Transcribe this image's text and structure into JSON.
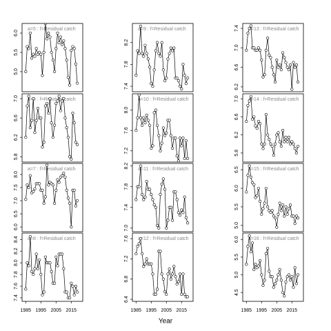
{
  "xlabel": "Year",
  "chart_data": [
    {
      "type": "line",
      "title": "a=5 : f=Residual catch",
      "color": "#000000",
      "x": [
        1985,
        1986,
        1987,
        1988,
        1989,
        1990,
        1991,
        1992,
        1993,
        1994,
        1995,
        1996,
        1997,
        1998,
        1999,
        2000,
        2001,
        2002,
        2003,
        2004,
        2005,
        2006,
        2007,
        2008,
        2009,
        2010,
        2011,
        2012,
        2013,
        2014,
        2015,
        2016,
        2017,
        2018,
        2019
      ],
      "values": [
        5.0,
        5.65,
        5.6,
        6.0,
        5.35,
        5.45,
        5.4,
        5.6,
        5.45,
        5.5,
        5.45,
        4.9,
        5.5,
        6.25,
        5.85,
        6.0,
        5.9,
        5.5,
        5.3,
        5.0,
        5.6,
        6.0,
        5.75,
        5.9,
        5.7,
        5.8,
        5.6,
        5.3,
        4.85,
        4.65,
        5.55,
        5.65,
        5.6,
        5.2,
        4.7
      ],
      "xlim": [
        1982.6,
        2022.6
      ],
      "ylim": [
        4.48,
        6.25
      ],
      "yticks": [
        {
          "value": 5,
          "label": "5.0"
        },
        5.5,
        {
          "value": 6,
          "label": "6.0"
        }
      ]
    },
    {
      "type": "line",
      "title": "a=6 : f=Residual catch",
      "color": "#000000",
      "x": [
        1985,
        1986,
        1987,
        1988,
        1989,
        1990,
        1991,
        1992,
        1993,
        1994,
        1995,
        1996,
        1997,
        1998,
        1999,
        2000,
        2001,
        2002,
        2003,
        2004,
        2005,
        2006,
        2007,
        2008,
        2009,
        2010,
        2011,
        2012,
        2013,
        2014,
        2015,
        2016,
        2017,
        2018,
        2019
      ],
      "values": [
        6.2,
        6.85,
        7.05,
        6.4,
        6.55,
        7.0,
        6.3,
        6.55,
        6.8,
        6.6,
        6.6,
        6.0,
        6.1,
        6.85,
        6.9,
        6.7,
        7.0,
        6.5,
        6.2,
        6.45,
        6.9,
        6.95,
        7.05,
        6.75,
        6.95,
        7.0,
        6.6,
        6.4,
        6.2,
        5.8,
        5.75,
        6.7,
        6.5,
        6.1,
        6.05
      ],
      "xlim": [
        1982.6,
        2022.6
      ],
      "ylim": [
        5.69,
        7.1
      ],
      "yticks": [
        5.8,
        6.2,
        6.6,
        {
          "value": 7,
          "label": "7.0"
        }
      ]
    },
    {
      "type": "line",
      "title": "a=7 : f=Residual catch",
      "color": "#000000",
      "x": [
        1985,
        1986,
        1987,
        1988,
        1989,
        1990,
        1991,
        1992,
        1993,
        1994,
        1995,
        1996,
        1997,
        1998,
        1999,
        2000,
        2001,
        2002,
        2003,
        2004,
        2005,
        2006,
        2007,
        2008,
        2009,
        2010,
        2011,
        2012,
        2013,
        2014,
        2015,
        2016,
        2017,
        2018,
        2019
      ],
      "values": [
        7.05,
        7.6,
        7.5,
        7.95,
        7.3,
        7.35,
        7.45,
        7.65,
        7.65,
        7.65,
        7.4,
        7.4,
        6.9,
        7.15,
        8.35,
        7.6,
        7.7,
        7.65,
        7.6,
        6.9,
        7.4,
        7.8,
        7.7,
        7.9,
        7.95,
        8.05,
        7.9,
        7.4,
        7.1,
        6.9,
        6.0,
        7.4,
        7.4,
        6.8,
        7.0
      ],
      "xlim": [
        1982.6,
        2022.6
      ],
      "ylim": [
        5.82,
        8.42
      ],
      "yticks": [
        {
          "value": 6,
          "label": "6.0"
        },
        6.5,
        {
          "value": 7,
          "label": "7.0"
        },
        7.5,
        {
          "value": 8,
          "label": "8.0"
        }
      ]
    },
    {
      "type": "line",
      "title": "a=8 : f=Residual catch",
      "color": "#000000",
      "x": [
        1985,
        1986,
        1987,
        1988,
        1989,
        1990,
        1991,
        1992,
        1993,
        1994,
        1995,
        1996,
        1997,
        1998,
        1999,
        2000,
        2001,
        2002,
        2003,
        2004,
        2005,
        2006,
        2007,
        2008,
        2009,
        2010,
        2011,
        2012,
        2013,
        2014,
        2015,
        2016,
        2017,
        2018,
        2019
      ],
      "values": [
        7.55,
        8.0,
        7.95,
        8.45,
        7.85,
        7.8,
        7.9,
        8.15,
        7.9,
        8.05,
        7.8,
        7.45,
        7.5,
        8.1,
        8.0,
        8.0,
        8.0,
        7.85,
        7.65,
        7.65,
        8.1,
        7.95,
        8.15,
        8.15,
        8.15,
        7.9,
        7.5,
        7.5,
        7.4,
        7.4,
        7.65,
        7.6,
        7.45,
        7.6,
        7.5
      ],
      "xlim": [
        1982.6,
        2022.6
      ],
      "ylim": [
        7.34,
        8.51
      ],
      "yticks": [
        7.4,
        7.6,
        7.8,
        {
          "value": 8,
          "label": "8.0"
        },
        8.2,
        8.4
      ],
      "xticks": [
        1985,
        1995,
        2005,
        2015
      ]
    },
    {
      "type": "line",
      "title": "a=9 : f=Residual catch",
      "color": "#000000",
      "x": [
        1985,
        1986,
        1987,
        1988,
        1989,
        1990,
        1991,
        1992,
        1993,
        1994,
        1995,
        1996,
        1997,
        1998,
        1999,
        2000,
        2001,
        2002,
        2003,
        2004,
        2005,
        2006,
        2007,
        2008,
        2009,
        2010,
        2011,
        2012,
        2013,
        2014,
        2015,
        2016,
        2017,
        2018,
        2019
      ],
      "values": [
        7.6,
        8.05,
        8.0,
        8.5,
        8.0,
        7.95,
        8.15,
        8.0,
        7.9,
        7.75,
        7.45,
        7.4,
        7.7,
        8.05,
        8.2,
        8.0,
        7.95,
        8.2,
        7.7,
        7.5,
        7.55,
        7.9,
        8.0,
        8.1,
        8.05,
        8.1,
        7.55,
        7.55,
        7.5,
        7.4,
        7.35,
        7.8,
        7.6,
        7.45,
        7.55
      ],
      "xlim": [
        1982.6,
        2022.6
      ],
      "ylim": [
        7.3,
        8.55
      ],
      "yticks": [
        7.4,
        7.8,
        8.2
      ]
    },
    {
      "type": "line",
      "title": "a=10 : f=Residual catch",
      "color": "#000000",
      "x": [
        1985,
        1986,
        1987,
        1988,
        1989,
        1990,
        1991,
        1992,
        1993,
        1994,
        1995,
        1996,
        1997,
        1998,
        1999,
        2000,
        2001,
        2002,
        2003,
        2004,
        2005,
        2006,
        2007,
        2008,
        2009,
        2010,
        2011,
        2012,
        2013,
        2014,
        2015,
        2016,
        2017,
        2018,
        2019
      ],
      "values": [
        7.6,
        7.85,
        8.3,
        7.85,
        7.7,
        7.85,
        7.75,
        7.9,
        7.8,
        7.7,
        7.25,
        7.3,
        7.95,
        8.0,
        7.7,
        7.5,
        7.2,
        7.35,
        7.65,
        7.5,
        7.55,
        7.8,
        7.8,
        7.5,
        7.25,
        7.45,
        7.45,
        7.1,
        7.0,
        7.45,
        7.3,
        7.45,
        7.05,
        7.4,
        7.05
      ],
      "xlim": [
        1982.6,
        2022.6
      ],
      "ylim": [
        6.98,
        8.32
      ],
      "yticks": [
        7.2,
        7.6,
        {
          "value": 8,
          "label": "8.0"
        }
      ]
    },
    {
      "type": "line",
      "title": "a=11 : f=Residual catch",
      "color": "#000000",
      "x": [
        1985,
        1986,
        1987,
        1988,
        1989,
        1990,
        1991,
        1992,
        1993,
        1994,
        1995,
        1996,
        1997,
        1998,
        1999,
        2000,
        2001,
        2002,
        2003,
        2004,
        2005,
        2006,
        2007,
        2008,
        2009,
        2010,
        2011,
        2012,
        2013,
        2014,
        2015,
        2016,
        2017,
        2018,
        2019
      ],
      "values": [
        7.55,
        7.8,
        7.8,
        8.2,
        7.65,
        7.55,
        7.6,
        7.9,
        7.75,
        7.75,
        7.65,
        7.55,
        7.45,
        7.4,
        7.05,
        7.0,
        7.65,
        7.85,
        7.95,
        7.75,
        7.0,
        7.15,
        7.4,
        7.4,
        7.15,
        7.7,
        7.7,
        7.55,
        7.3,
        7.25,
        7.35,
        7.3,
        7.6,
        7.2,
        7.1
      ],
      "xlim": [
        1982.6,
        2022.6
      ],
      "ylim": [
        6.93,
        8.25
      ],
      "yticks": [
        {
          "value": 7,
          "label": "7.0"
        },
        7.4,
        7.8,
        8.2
      ]
    },
    {
      "type": "line",
      "title": "a=12 : f=Residual catch",
      "color": "#000000",
      "x": [
        1985,
        1986,
        1987,
        1988,
        1989,
        1990,
        1991,
        1992,
        1993,
        1994,
        1995,
        1996,
        1997,
        1998,
        1999,
        2000,
        2001,
        2002,
        2003,
        2004,
        2005,
        2006,
        2007,
        2008,
        2009,
        2010,
        2011,
        2012,
        2013,
        2014,
        2015,
        2016,
        2017,
        2018,
        2019
      ],
      "values": [
        7.3,
        7.45,
        7.5,
        7.6,
        7.3,
        7.05,
        7.1,
        7.2,
        7.1,
        7.1,
        7.1,
        6.9,
        6.5,
        6.5,
        6.6,
        7.35,
        7.35,
        6.9,
        6.8,
        6.55,
        6.5,
        6.9,
        7.0,
        6.8,
        6.9,
        7.05,
        6.85,
        6.7,
        6.75,
        6.9,
        6.5,
        6.9,
        6.5,
        6.45,
        6.45
      ],
      "xlim": [
        1982.6,
        2022.6
      ],
      "ylim": [
        6.36,
        7.71
      ],
      "yticks": [
        6.4,
        6.8,
        7.2,
        7.6
      ],
      "xticks": [
        1985,
        1995,
        2005,
        2015
      ]
    },
    {
      "type": "line",
      "title": "a=13 : f=Residual catch",
      "color": "#000000",
      "x": [
        1985,
        1986,
        1987,
        1988,
        1989,
        1990,
        1991,
        1992,
        1993,
        1994,
        1995,
        1996,
        1997,
        1998,
        1999,
        2000,
        2001,
        2002,
        2003,
        2004,
        2005,
        2006,
        2007,
        2008,
        2009,
        2010,
        2011,
        2012,
        2013,
        2014,
        2015,
        2016,
        2017,
        2018,
        2019
      ],
      "values": [
        6.95,
        7.3,
        7.4,
        7.45,
        7.0,
        7.0,
        6.95,
        6.95,
        7.0,
        6.95,
        6.75,
        6.4,
        6.45,
        6.95,
        7.2,
        6.85,
        6.8,
        6.6,
        6.45,
        6.3,
        6.75,
        6.6,
        6.65,
        6.55,
        6.9,
        6.8,
        6.7,
        6.6,
        6.55,
        6.65,
        6.15,
        6.7,
        6.6,
        6.65,
        6.3
      ],
      "xlim": [
        1982.6,
        2022.6
      ],
      "ylim": [
        6.1,
        7.5
      ],
      "yticks": [
        6.2,
        6.6,
        {
          "value": 7,
          "label": "7.0"
        },
        7.4
      ]
    },
    {
      "type": "line",
      "title": "a=14 : f=Residual catch",
      "color": "#000000",
      "x": [
        1985,
        1986,
        1987,
        1988,
        1989,
        1990,
        1991,
        1992,
        1993,
        1994,
        1995,
        1996,
        1997,
        1998,
        1999,
        2000,
        2001,
        2002,
        2003,
        2004,
        2005,
        2006,
        2007,
        2008,
        2009,
        2010,
        2011,
        2012,
        2013,
        2014,
        2015,
        2016,
        2017,
        2018,
        2019
      ],
      "values": [
        6.5,
        6.85,
        6.95,
        7.05,
        6.55,
        6.6,
        6.4,
        6.35,
        6.5,
        6.45,
        6.0,
        5.9,
        6.0,
        6.65,
        6.2,
        6.1,
        6.0,
        5.95,
        5.75,
        6.0,
        6.2,
        6.25,
        6.05,
        5.95,
        6.3,
        6.05,
        6.15,
        6.05,
        6.15,
        6.0,
        6.05,
        6.0,
        5.9,
        5.8,
        5.95
      ],
      "xlim": [
        1982.6,
        2022.6
      ],
      "ylim": [
        5.6,
        7.11
      ],
      "yticks": [
        5.8,
        6.2,
        6.6,
        {
          "value": 7,
          "label": "7.0"
        }
      ]
    },
    {
      "type": "line",
      "title": "a=15 : f=Residual catch",
      "color": "#000000",
      "x": [
        1985,
        1986,
        1987,
        1988,
        1989,
        1990,
        1991,
        1992,
        1993,
        1994,
        1995,
        1996,
        1997,
        1998,
        1999,
        2000,
        2001,
        2002,
        2003,
        2004,
        2005,
        2006,
        2007,
        2008,
        2009,
        2010,
        2011,
        2012,
        2013,
        2014,
        2015,
        2016,
        2017,
        2018,
        2019
      ],
      "values": [
        5.9,
        6.35,
        6.6,
        6.3,
        6.15,
        6.1,
        5.75,
        5.8,
        6.0,
        5.65,
        5.3,
        5.45,
        5.6,
        6.0,
        5.5,
        5.4,
        5.35,
        5.4,
        5.25,
        5.2,
        4.95,
        5.3,
        5.6,
        5.4,
        5.55,
        5.25,
        5.5,
        5.3,
        5.45,
        5.55,
        5.25,
        5.25,
        5.05,
        5.25,
        5.2
      ],
      "xlim": [
        1982.6,
        2022.6
      ],
      "ylim": [
        4.83,
        6.67
      ],
      "yticks": [
        {
          "value": 5,
          "label": "5.0"
        },
        5.5,
        {
          "value": 6,
          "label": "6.0"
        },
        6.5
      ]
    },
    {
      "type": "line",
      "title": "a=16 : f=Residual catch",
      "color": "#000000",
      "x": [
        1985,
        1986,
        1987,
        1988,
        1989,
        1990,
        1991,
        1992,
        1993,
        1994,
        1995,
        1996,
        1997,
        1998,
        1999,
        2000,
        2001,
        2002,
        2003,
        2004,
        2005,
        2006,
        2007,
        2008,
        2009,
        2010,
        2011,
        2012,
        2013,
        2014,
        2015,
        2016,
        2017,
        2018,
        2019
      ],
      "values": [
        5.3,
        5.8,
        6.1,
        5.65,
        5.9,
        5.15,
        5.3,
        5.2,
        5.25,
        5.4,
        5.0,
        4.7,
        4.85,
        5.6,
        5.75,
        5.1,
        4.95,
        4.95,
        4.65,
        4.75,
        4.85,
        5.0,
        5.15,
        4.85,
        4.5,
        4.4,
        4.8,
        4.95,
        5.0,
        4.85,
        4.95,
        4.65,
        5.2,
        4.75,
        5.0
      ],
      "xlim": [
        1982.6,
        2022.6
      ],
      "ylim": [
        4.25,
        6.18
      ],
      "yticks": [
        4.5,
        {
          "value": 5,
          "label": "5.0"
        },
        5.5,
        {
          "value": 6,
          "label": "6.0"
        }
      ],
      "xticks": [
        1985,
        1995,
        2005,
        2015
      ]
    }
  ]
}
